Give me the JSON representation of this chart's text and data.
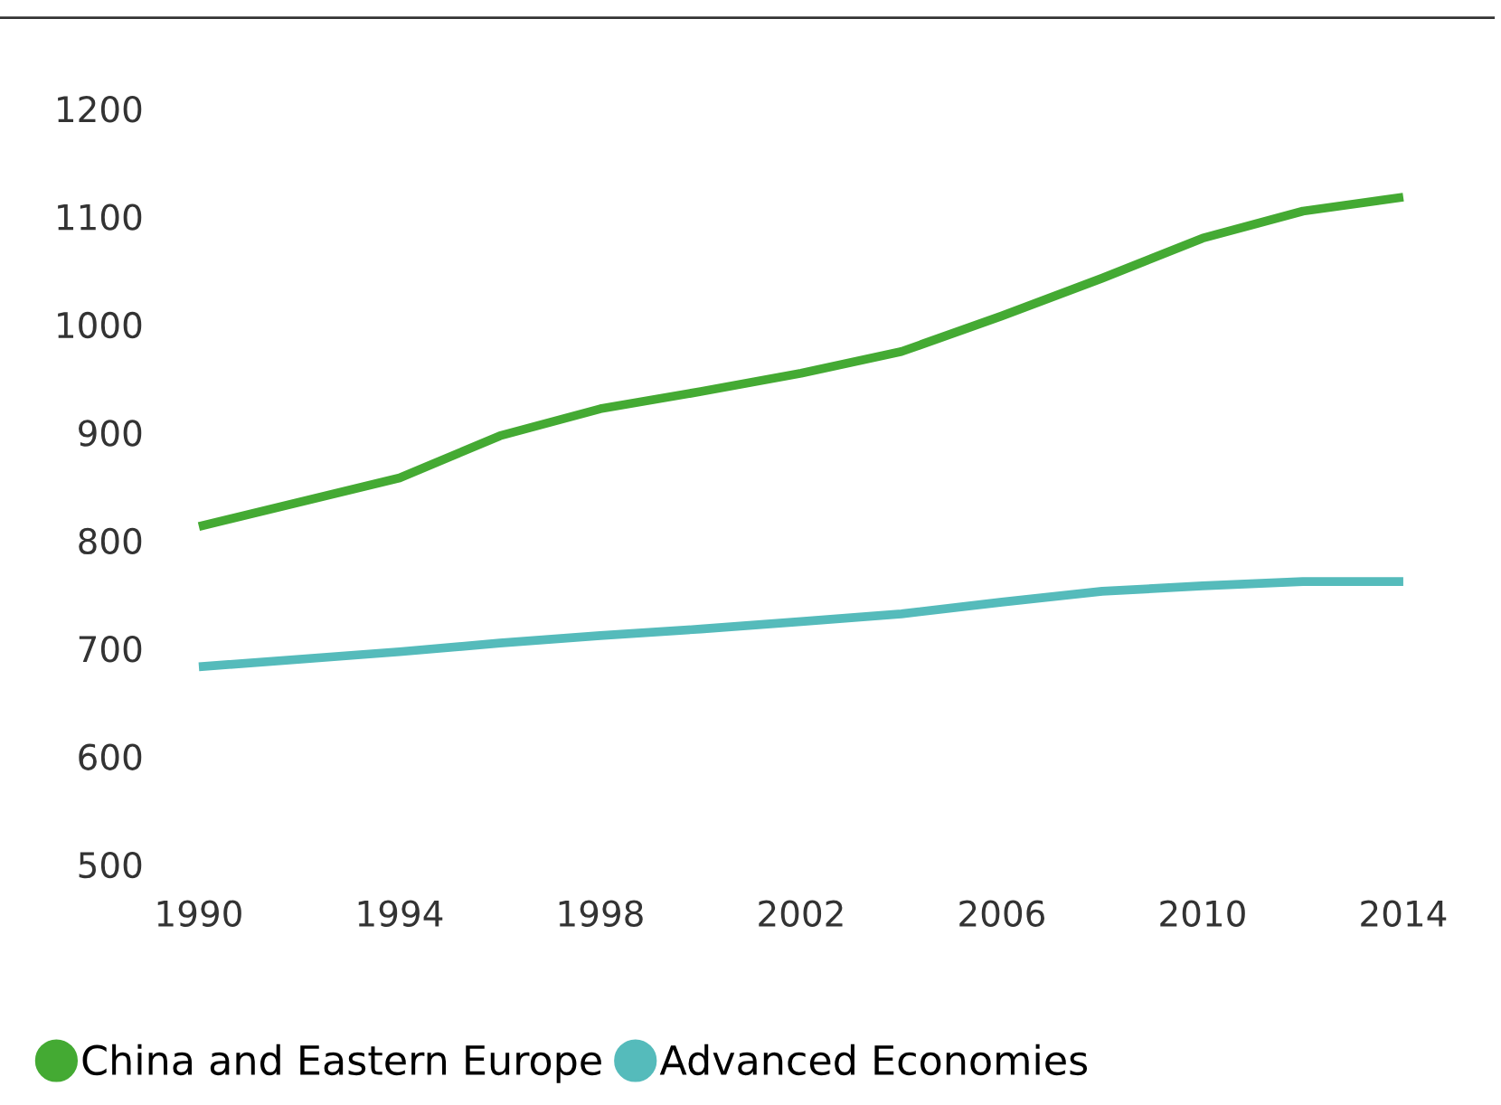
{
  "chart_data": {
    "type": "line",
    "x": [
      1990,
      1994,
      1996,
      1998,
      2000,
      2002,
      2004,
      2006,
      2008,
      2010,
      2012,
      2014
    ],
    "series": [
      {
        "name": "China and Eastern Europe",
        "color": "#44aa33",
        "values": [
          813,
          858,
          897,
          922,
          938,
          955,
          975,
          1008,
          1043,
          1080,
          1105,
          1118
        ]
      },
      {
        "name": "Advanced Economies",
        "color": "#55bbbb",
        "values": [
          683,
          697,
          705,
          712,
          718,
          725,
          732,
          743,
          753,
          758,
          762,
          762
        ]
      }
    ],
    "xlim": [
      1990,
      2014
    ],
    "xticks": [
      1990,
      1994,
      1998,
      2002,
      2006,
      2010,
      2014
    ],
    "ylim": [
      500,
      1200
    ],
    "yticks": [
      500,
      600,
      700,
      800,
      900,
      1000,
      1100,
      1200
    ],
    "grid": false,
    "legend": "bottom left",
    "marker": "none",
    "line_style": "solid"
  }
}
